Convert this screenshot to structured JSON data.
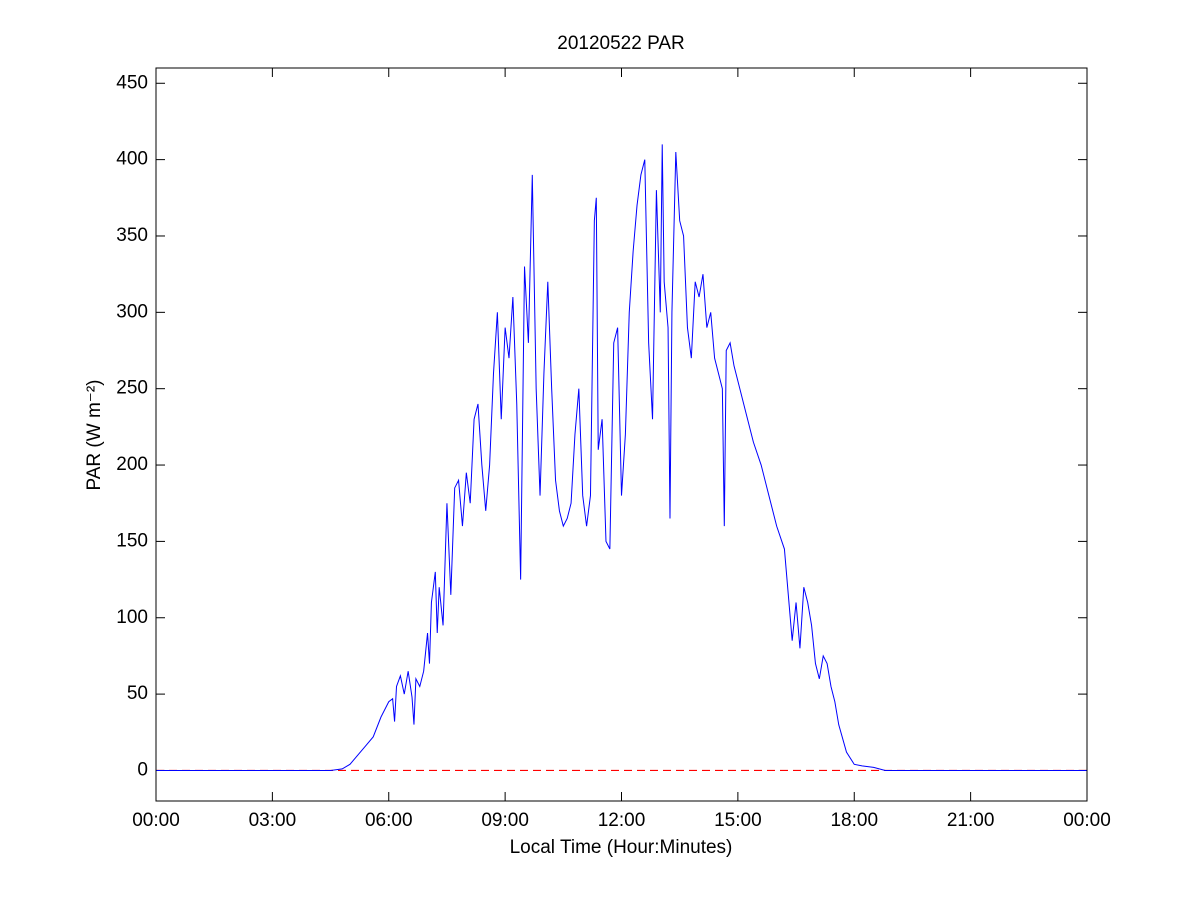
{
  "chart_data": {
    "type": "line",
    "title": "20120522 PAR",
    "xlabel": "Local Time (Hour:Minutes)",
    "ylabel": "PAR (W m⁻²)",
    "color": "#0000ff",
    "x": [
      0,
      4.5,
      4.8,
      5.0,
      5.2,
      5.4,
      5.6,
      5.8,
      6.0,
      6.1,
      6.15,
      6.2,
      6.3,
      6.4,
      6.5,
      6.6,
      6.65,
      6.7,
      6.8,
      6.9,
      7.0,
      7.05,
      7.1,
      7.2,
      7.25,
      7.3,
      7.4,
      7.5,
      7.6,
      7.7,
      7.8,
      7.9,
      8.0,
      8.1,
      8.2,
      8.3,
      8.4,
      8.5,
      8.6,
      8.7,
      8.8,
      8.9,
      9.0,
      9.1,
      9.2,
      9.3,
      9.4,
      9.5,
      9.6,
      9.7,
      9.8,
      9.9,
      10.0,
      10.1,
      10.2,
      10.3,
      10.4,
      10.5,
      10.6,
      10.7,
      10.8,
      10.9,
      11.0,
      11.1,
      11.2,
      11.3,
      11.35,
      11.4,
      11.5,
      11.6,
      11.7,
      11.8,
      11.9,
      12.0,
      12.1,
      12.2,
      12.3,
      12.4,
      12.5,
      12.6,
      12.7,
      12.8,
      12.9,
      13.0,
      13.05,
      13.1,
      13.2,
      13.25,
      13.3,
      13.4,
      13.5,
      13.6,
      13.7,
      13.8,
      13.9,
      14.0,
      14.1,
      14.2,
      14.3,
      14.4,
      14.5,
      14.6,
      14.65,
      14.7,
      14.8,
      14.9,
      15.0,
      15.2,
      15.4,
      15.6,
      15.8,
      16.0,
      16.2,
      16.3,
      16.4,
      16.5,
      16.6,
      16.7,
      16.8,
      16.9,
      17.0,
      17.1,
      17.2,
      17.3,
      17.4,
      17.5,
      17.6,
      17.8,
      18.0,
      18.2,
      18.5,
      18.8,
      19.0,
      24
    ],
    "values": [
      0,
      0,
      1,
      4,
      10,
      16,
      22,
      35,
      45,
      47,
      32,
      55,
      62,
      50,
      65,
      48,
      30,
      60,
      55,
      65,
      90,
      70,
      110,
      130,
      90,
      120,
      95,
      175,
      115,
      185,
      190,
      160,
      195,
      175,
      230,
      240,
      200,
      170,
      200,
      260,
      300,
      230,
      290,
      270,
      310,
      240,
      125,
      330,
      280,
      390,
      250,
      180,
      260,
      320,
      250,
      190,
      170,
      160,
      165,
      175,
      220,
      250,
      180,
      160,
      180,
      360,
      375,
      210,
      230,
      150,
      145,
      280,
      290,
      180,
      220,
      300,
      340,
      370,
      390,
      400,
      280,
      230,
      380,
      300,
      410,
      320,
      290,
      165,
      300,
      405,
      360,
      350,
      290,
      270,
      320,
      310,
      325,
      290,
      300,
      270,
      260,
      250,
      160,
      275,
      280,
      265,
      255,
      235,
      215,
      200,
      180,
      160,
      145,
      115,
      85,
      110,
      80,
      120,
      110,
      95,
      70,
      60,
      75,
      70,
      55,
      45,
      30,
      12,
      4,
      3,
      2,
      0,
      0,
      0
    ],
    "reference_line": {
      "y": 0,
      "color": "#ff0000",
      "style": "dashed"
    },
    "xlim": [
      0,
      24
    ],
    "xticks": [
      {
        "value": 0,
        "label": "00:00"
      },
      {
        "value": 3,
        "label": "03:00"
      },
      {
        "value": 6,
        "label": "06:00"
      },
      {
        "value": 9,
        "label": "09:00"
      },
      {
        "value": 12,
        "label": "12:00"
      },
      {
        "value": 15,
        "label": "15:00"
      },
      {
        "value": 18,
        "label": "18:00"
      },
      {
        "value": 21,
        "label": "21:00"
      },
      {
        "value": 24,
        "label": "00:00"
      }
    ],
    "ylim": [
      -20,
      460
    ],
    "yticks": [
      0,
      50,
      100,
      150,
      200,
      250,
      300,
      350,
      400,
      450
    ],
    "grid": false
  }
}
